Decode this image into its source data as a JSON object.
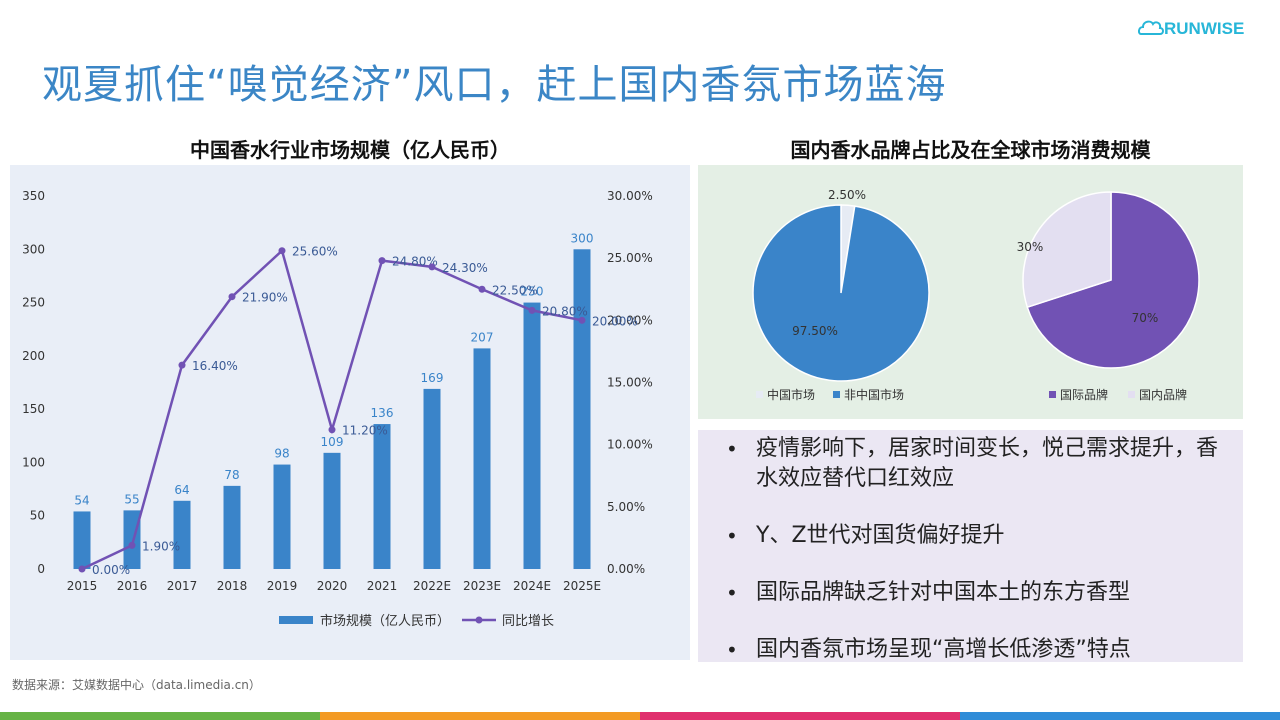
{
  "slide": {
    "title": "观夏抓住“嗅觉经济”风口，赶上国内香氛市场蓝海",
    "logo_text": "RUNWISE",
    "source": "数据来源：艾媒数据中心（data.limedia.cn）"
  },
  "colors": {
    "title": "#3b86c6",
    "bar": "#3a84c9",
    "line": "#7152b4",
    "pie_blue": "#3a84c9",
    "pie_purple": "#7152b4",
    "pie_light": "#e3dff1",
    "bottom_bar": [
      "#66b345",
      "#f39a24",
      "#e0306d",
      "#2f8cd8"
    ]
  },
  "bar_section": {
    "title": "中国香水行业市场规模（亿人民币）"
  },
  "pie_section": {
    "title": "国内香水品牌占比及在全球市场消费规模"
  },
  "chart_data": [
    {
      "type": "bar",
      "categories": [
        "2015",
        "2016",
        "2017",
        "2018",
        "2019",
        "2020",
        "2021",
        "2022E",
        "2023E",
        "2024E",
        "2025E"
      ],
      "series": [
        {
          "name": "市场规模（亿人民币）",
          "type": "bar",
          "axis": "left",
          "values": [
            54,
            55,
            64,
            78,
            98,
            109,
            136,
            169,
            207,
            250,
            300
          ]
        },
        {
          "name": "同比增长",
          "type": "line",
          "axis": "right",
          "values": [
            0.0,
            1.9,
            16.4,
            21.9,
            25.6,
            11.2,
            24.8,
            24.3,
            22.5,
            20.8,
            20.0
          ],
          "labels": [
            "0.00%",
            "1.90%",
            "16.40%",
            "21.90%",
            "25.60%",
            "11.20%",
            "24.80%",
            "24.30%",
            "22.50%",
            "20.80%",
            "20.00%"
          ]
        }
      ],
      "y_left": {
        "min": 0,
        "max": 350,
        "ticks": [
          "0",
          "50",
          "100",
          "150",
          "200",
          "250",
          "300",
          "350"
        ]
      },
      "y_right": {
        "min": 0,
        "max": 30,
        "ticks": [
          "0.00%",
          "5.00%",
          "10.00%",
          "15.00%",
          "20.00%",
          "25.00%",
          "30.00%"
        ]
      },
      "legend_position": "bottom",
      "grid": false
    },
    {
      "type": "pie",
      "labels": [
        "中国市场",
        "非中国市场"
      ],
      "values": [
        2.5,
        97.5
      ],
      "value_labels": [
        "2.50%",
        "97.50%"
      ],
      "legend_position": "bottom"
    },
    {
      "type": "pie",
      "labels": [
        "国际品牌",
        "国内品牌"
      ],
      "values": [
        70,
        30
      ],
      "value_labels": [
        "70%",
        "30%"
      ],
      "legend_position": "bottom"
    }
  ],
  "bullets": [
    "疫情影响下，居家时间变长，悦己需求提升，香水效应替代口红效应",
    "Y、Z世代对国货偏好提升",
    "国际品牌缺乏针对中国本土的东方香型",
    "国内香氛市场呈现“高增长低渗透”特点"
  ],
  "bullet_symbol": "•"
}
